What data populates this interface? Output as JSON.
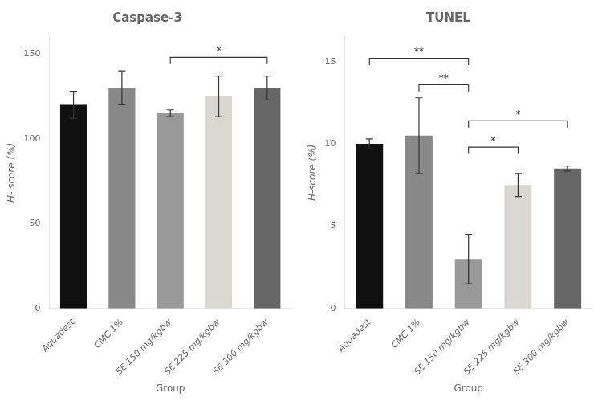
{
  "chart_data": [
    {
      "type": "bar",
      "title": "Caspase-3",
      "xlabel": "Group",
      "ylabel": "H- score (%)",
      "categories": [
        "Aquadest",
        "CMC 1%",
        "SE 150 mg/kgbw",
        "SE 225 mg/kgbw",
        "SE 300 mg/kgbw"
      ],
      "values": [
        120,
        130,
        115,
        125,
        130
      ],
      "errors": [
        8,
        10,
        2,
        12,
        7
      ],
      "colors": [
        "#111111",
        "#888888",
        "#999999",
        "#d8d8d0",
        "#666666"
      ],
      "ylim": [
        0,
        160
      ],
      "yticks": [
        0,
        50,
        100,
        150
      ],
      "grid": false,
      "annotations": [
        {
          "from": "SE 150 mg/kgbw",
          "to": "SE 300 mg/kgbw",
          "y": 148,
          "label": "*"
        }
      ]
    },
    {
      "type": "bar",
      "title": "TUNEL",
      "xlabel": "Group",
      "ylabel": "H-score (%)",
      "categories": [
        "Aquadest",
        "CMC 1%",
        "SE 150 mg/kgbw",
        "SE 225 mg/kgbw",
        "SE 300 mg/kgbw"
      ],
      "values": [
        10.0,
        10.5,
        3.0,
        7.5,
        8.5
      ],
      "errors": [
        0.3,
        2.3,
        1.5,
        0.7,
        0.15
      ],
      "colors": [
        "#111111",
        "#888888",
        "#999999",
        "#d8d8d0",
        "#666666"
      ],
      "ylim": [
        0,
        16.5
      ],
      "yticks": [
        0,
        5,
        10,
        15
      ],
      "grid": false,
      "annotations": [
        {
          "from": "Aquadest",
          "to": "SE 150 mg/kgbw",
          "y": 15.2,
          "label": "**"
        },
        {
          "from": "CMC 1%",
          "to": "SE 150 mg/kgbw",
          "y": 13.6,
          "label": "**"
        },
        {
          "from": "SE 150 mg/kgbw",
          "to": "SE 225 mg/kgbw",
          "y": 9.8,
          "label": "*"
        },
        {
          "from": "SE 150 mg/kgbw",
          "to": "SE 300 mg/kgbw",
          "y": 11.4,
          "label": "*"
        }
      ]
    }
  ]
}
